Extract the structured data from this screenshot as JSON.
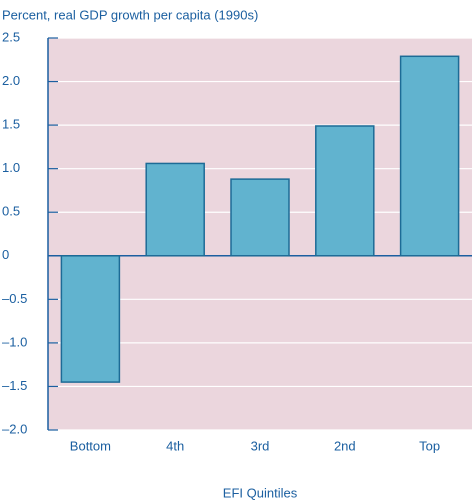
{
  "chart_data": {
    "type": "bar",
    "title": "Percent, real GDP growth per capita (1990s)",
    "xlabel": "EFI Quintiles",
    "categories": [
      "Bottom",
      "4th",
      "3rd",
      "2nd",
      "Top"
    ],
    "values": [
      -1.45,
      1.06,
      0.88,
      1.49,
      2.29
    ],
    "color": "#61b3cf",
    "ylim": [
      -2.0,
      2.5
    ],
    "yticks": [
      {
        "value": -2.0,
        "label": "–2.0"
      },
      {
        "value": -1.5,
        "label": "–1.5"
      },
      {
        "value": -1.0,
        "label": "–1.0"
      },
      {
        "value": -0.5,
        "label": "–0.5"
      },
      0,
      0.5,
      {
        "value": 1.0,
        "label": "1.0"
      },
      1.5,
      {
        "value": 2.0,
        "label": "2.0"
      },
      2.5
    ],
    "grid": true
  }
}
